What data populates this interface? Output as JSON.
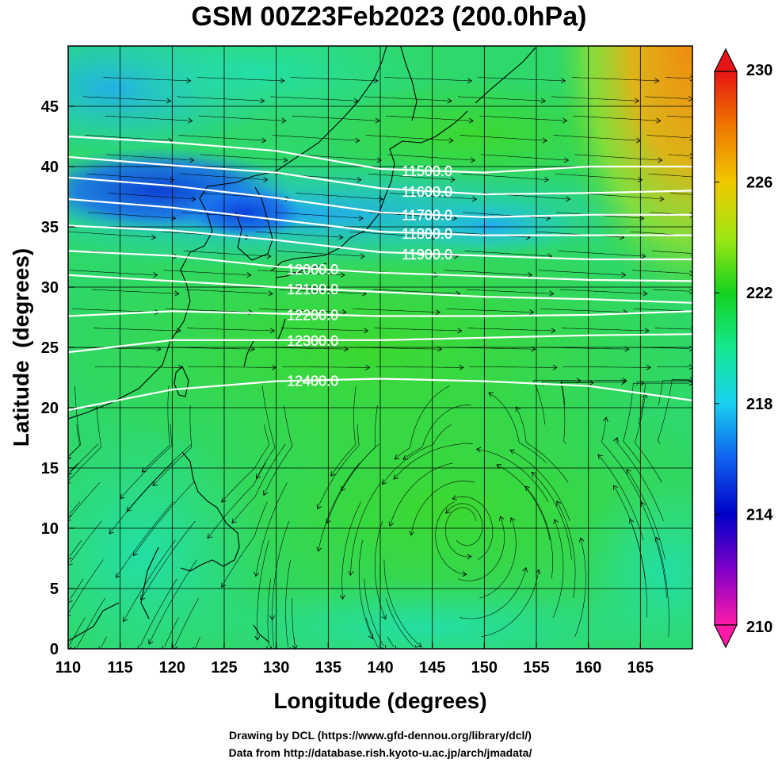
{
  "chart_data": {
    "type": "heatmap",
    "title": "GSM 00Z23Feb2023 (200.0hPa)",
    "xlabel": "Longitude (degrees)",
    "ylabel": "Latitude  (degrees)",
    "xlim": [
      110,
      170
    ],
    "ylim": [
      0,
      50
    ],
    "x_ticks": [
      110,
      115,
      120,
      125,
      130,
      135,
      140,
      145,
      150,
      155,
      160,
      165
    ],
    "y_ticks": [
      0,
      5,
      10,
      15,
      20,
      25,
      30,
      35,
      40,
      45
    ],
    "grid": true,
    "colorbar": {
      "min": 210,
      "max": 230,
      "labels": [
        230,
        226,
        222,
        218,
        214,
        210
      ],
      "colors": [
        "#ff1aa8",
        "#8000c8",
        "#0000c8",
        "#1060f0",
        "#19d0f0",
        "#14e890",
        "#14d21e",
        "#a0e614",
        "#f0c800",
        "#f07800",
        "#e61414"
      ]
    },
    "contours": [
      {
        "label": "11500.0",
        "x": [
          110,
          120,
          130,
          140,
          150,
          160,
          170
        ],
        "y": [
          42.5,
          42.0,
          41.3,
          39.8,
          39.5,
          40.0,
          40.0
        ]
      },
      {
        "label": "11600.0",
        "x": [
          110,
          120,
          130,
          140,
          150,
          160,
          170
        ],
        "y": [
          40.8,
          40.1,
          39.5,
          38.2,
          37.7,
          37.8,
          38.0
        ]
      },
      {
        "label": "11700.0",
        "x": [
          110,
          120,
          130,
          140,
          150,
          160,
          170
        ],
        "y": [
          39.1,
          38.4,
          37.4,
          36.2,
          35.8,
          36.0,
          36.0
        ]
      },
      {
        "label": "11800.0",
        "x": [
          110,
          120,
          130,
          140,
          150,
          160,
          170
        ],
        "y": [
          37.3,
          36.6,
          35.6,
          34.6,
          34.3,
          34.3,
          34.3
        ]
      },
      {
        "label": "11900.0",
        "x": [
          110,
          120,
          130,
          140,
          150,
          160,
          170
        ],
        "y": [
          35.1,
          34.7,
          33.9,
          32.9,
          32.6,
          32.3,
          32.3
        ]
      },
      {
        "label": "12000.0",
        "x": [
          110,
          120,
          130,
          140,
          150,
          160,
          170
        ],
        "y": [
          33.0,
          32.6,
          31.7,
          31.2,
          30.9,
          30.6,
          30.5
        ]
      },
      {
        "label": "12100.0",
        "x": [
          110,
          120,
          130,
          140,
          150,
          160,
          170
        ],
        "y": [
          31.0,
          30.5,
          30.0,
          29.6,
          29.2,
          29.0,
          28.7
        ]
      },
      {
        "label": "12200.0",
        "x": [
          110,
          120,
          130,
          140,
          150,
          160,
          170
        ],
        "y": [
          27.6,
          28.0,
          27.8,
          27.6,
          27.6,
          27.7,
          28.0
        ]
      },
      {
        "label": "12300.0",
        "x": [
          110,
          120,
          130,
          140,
          150,
          160,
          170
        ],
        "y": [
          24.6,
          25.6,
          25.6,
          25.6,
          25.8,
          26.0,
          26.1
        ]
      },
      {
        "label": "12400.0",
        "x": [
          110,
          120,
          130,
          140,
          150,
          160,
          170
        ],
        "y": [
          19.8,
          21.5,
          22.2,
          22.4,
          22.2,
          21.8,
          20.6
        ]
      }
    ]
  },
  "credits": {
    "line1": "Drawing by DCL (https://www.gfd-dennou.org/library/dcl/)",
    "line2": "Data from http://database.rish.kyoto-u.ac.jp/arch/jmadata/"
  }
}
